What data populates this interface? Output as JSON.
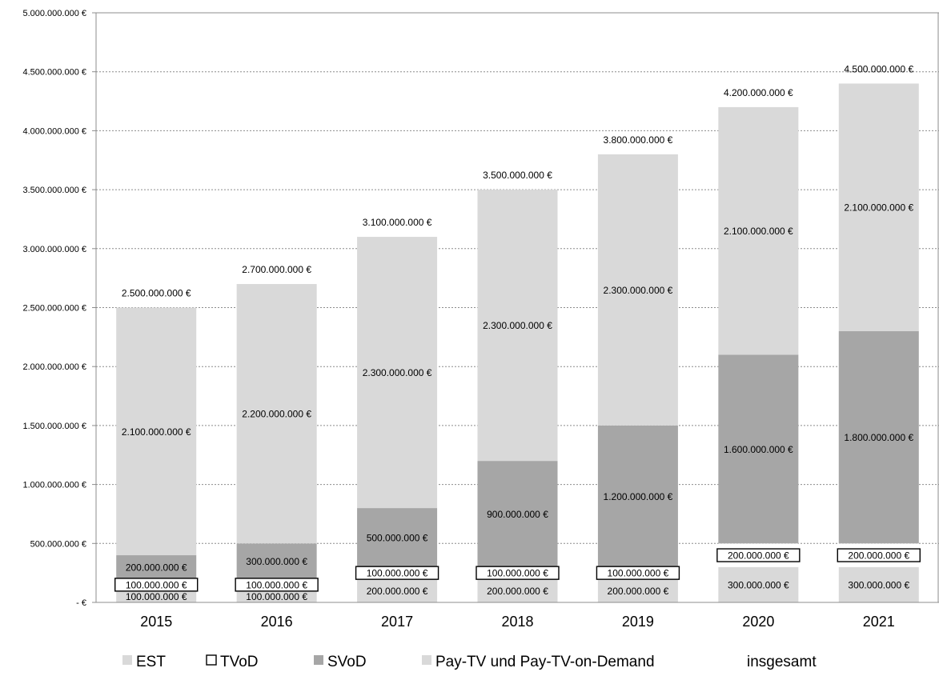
{
  "chart_data": {
    "type": "bar",
    "stacked": true,
    "title": "",
    "xlabel": "",
    "ylabel": "",
    "categories": [
      "2015",
      "2016",
      "2017",
      "2018",
      "2019",
      "2020",
      "2021"
    ],
    "ylim": [
      0,
      5000000000
    ],
    "y_ticks": [
      0,
      500000000,
      1000000000,
      1500000000,
      2000000000,
      2500000000,
      3000000000,
      3500000000,
      4000000000,
      4500000000,
      5000000000
    ],
    "y_tick_labels": [
      "-  €",
      "500.000.000 €",
      "1.000.000.000 €",
      "1.500.000.000 €",
      "2.000.000.000 €",
      "2.500.000.000 €",
      "3.000.000.000 €",
      "3.500.000.000 €",
      "4.000.000.000 €",
      "4.500.000.000 €",
      "5.000.000.000 €"
    ],
    "grid": true,
    "legend_position": "bottom",
    "series": [
      {
        "name": "EST",
        "color": "#d9d9d9",
        "values": [
          100000000,
          100000000,
          200000000,
          200000000,
          200000000,
          300000000,
          300000000
        ],
        "labels": [
          "100.000.000 €",
          "100.000.000 €",
          "200.000.000 €",
          "200.000.000 €",
          "200.000.000 €",
          "300.000.000 €",
          "300.000.000 €"
        ]
      },
      {
        "name": "TVoD",
        "color": "#ffffff",
        "values": [
          100000000,
          100000000,
          100000000,
          100000000,
          100000000,
          200000000,
          200000000
        ],
        "labels": [
          "100.000.000 €",
          "100.000.000 €",
          "100.000.000 €",
          "100.000.000 €",
          "100.000.000 €",
          "200.000.000 €",
          "200.000.000 €"
        ]
      },
      {
        "name": "SVoD",
        "color": "#a6a6a6",
        "values": [
          200000000,
          300000000,
          500000000,
          900000000,
          1200000000,
          1600000000,
          1800000000
        ],
        "labels": [
          "200.000.000 €",
          "300.000.000 €",
          "500.000.000 €",
          "900.000.000 €",
          "1.200.000.000 €",
          "1.600.000.000 €",
          "1.800.000.000 €"
        ]
      },
      {
        "name": "Pay-TV und Pay-TV-on-Demand",
        "color": "#d9d9d9",
        "values": [
          2100000000,
          2200000000,
          2300000000,
          2300000000,
          2300000000,
          2100000000,
          2100000000
        ],
        "labels": [
          "2.100.000.000 €",
          "2.200.000.000 €",
          "2.300.000.000 €",
          "2.300.000.000 €",
          "2.300.000.000 €",
          "2.100.000.000 €",
          "2.100.000.000 €"
        ]
      }
    ],
    "totals": {
      "name": "insgesamt",
      "values": [
        2500000000,
        2700000000,
        3100000000,
        3500000000,
        3800000000,
        4200000000,
        4500000000
      ],
      "labels": [
        "2.500.000.000 €",
        "2.700.000.000 €",
        "3.100.000.000 €",
        "3.500.000.000 €",
        "3.800.000.000 €",
        "4.200.000.000 €",
        "4.500.000.000 €"
      ]
    }
  }
}
